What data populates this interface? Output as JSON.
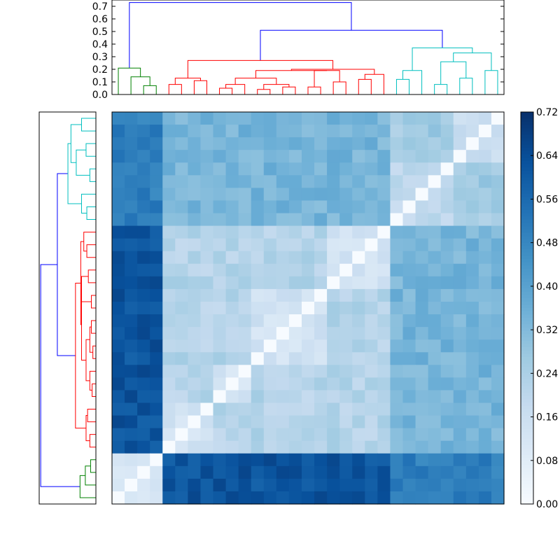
{
  "chart_data": {
    "type": "heatmap",
    "title": "",
    "n": 31,
    "order": [
      28,
      29,
      30,
      27,
      8,
      7,
      6,
      5,
      4,
      3,
      2,
      1,
      0,
      9,
      10,
      11,
      12,
      13,
      14,
      15,
      16,
      17,
      18,
      19,
      20,
      21,
      22,
      23,
      24,
      25,
      26
    ],
    "linkage": [
      [
        12,
        11,
        0.04,
        "red"
      ],
      [
        13,
        14,
        0.05,
        "red"
      ],
      [
        17,
        16,
        0.06,
        "red"
      ],
      [
        24,
        25,
        0.06,
        "cyan"
      ],
      [
        29,
        30,
        0.07,
        "green"
      ],
      [
        18,
        19,
        0.07,
        "red"
      ],
      [
        2,
        1,
        0.09,
        "red"
      ],
      [
        22,
        23,
        0.12,
        "red"
      ],
      [
        6,
        5,
        0.12,
        "red"
      ],
      [
        3,
        0,
        0.12,
        "red"
      ],
      [
        15,
        34,
        0.12,
        "red"
      ],
      [
        8,
        7,
        0.12,
        "red"
      ],
      [
        26,
        27,
        0.12,
        "cyan"
      ],
      [
        28,
        35,
        0.15,
        "green"
      ],
      [
        20,
        21,
        0.18,
        "cyan"
      ],
      [
        4,
        37,
        0.18,
        "red"
      ],
      [
        36,
        41,
        0.18,
        "red"
      ],
      [
        22,
        23,
        0.0,
        "none"
      ]
    ],
    "dendrogram_y_ticks": [
      0.0,
      0.1,
      0.2,
      0.3,
      0.4,
      0.5,
      0.6,
      0.7
    ],
    "dendrogram_ylim": [
      0,
      0.75
    ],
    "colorbar": {
      "min": 0.0,
      "max": 0.72,
      "ticks": [
        "0.00",
        "0.08",
        "0.16",
        "0.24",
        "0.32",
        "0.40",
        "0.48",
        "0.56",
        "0.64",
        "0.72"
      ]
    },
    "cluster_colors": {
      "green": "#008000",
      "red": "#ff0000",
      "cyan": "#00bfbf",
      "blue": "#0000ff"
    },
    "colormap": "Blues"
  }
}
